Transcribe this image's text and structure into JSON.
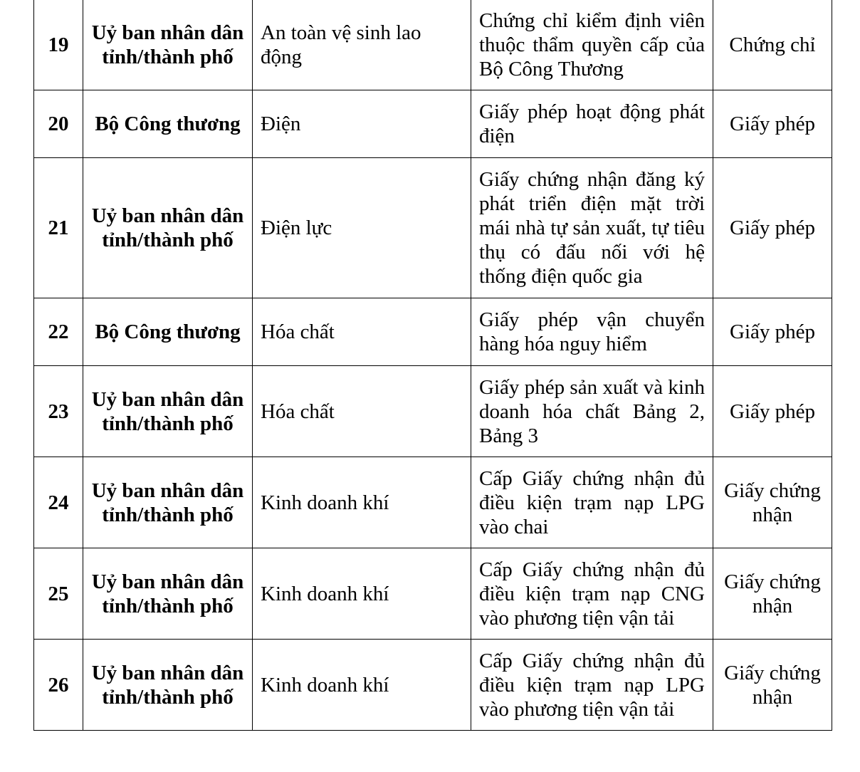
{
  "rows": [
    {
      "no": "19",
      "agency": "Uỷ ban nhân dân tỉnh/thành phố",
      "field": "An toàn vệ sinh lao động",
      "procedure": "Chứng chỉ kiểm định viên thuộc thẩm quyền cấp của Bộ Công Thương",
      "type": "Chứng chỉ"
    },
    {
      "no": "20",
      "agency": "Bộ Công thương",
      "field": "Điện",
      "procedure": "Giấy phép hoạt động phát điện",
      "type": "Giấy phép"
    },
    {
      "no": "21",
      "agency": "Uỷ ban nhân dân tỉnh/thành phố",
      "field": "Điện lực",
      "procedure": "Giấy chứng nhận đăng ký phát triển điện mặt trời mái nhà tự sản xuất, tự tiêu thụ có đấu nối với hệ thống điện quốc gia",
      "type": "Giấy phép"
    },
    {
      "no": "22",
      "agency": "Bộ Công thương",
      "field": "Hóa chất",
      "procedure": "Giấy phép vận chuyển hàng hóa nguy hiểm",
      "type": "Giấy phép"
    },
    {
      "no": "23",
      "agency": "Uỷ ban nhân dân tỉnh/thành phố",
      "field": "Hóa chất",
      "procedure": "Giấy phép sản xuất và kinh doanh hóa chất Bảng 2, Bảng 3",
      "type": "Giấy phép"
    },
    {
      "no": "24",
      "agency": "Uỷ ban nhân dân tỉnh/thành phố",
      "field": "Kinh doanh khí",
      "procedure": "Cấp Giấy chứng nhận đủ điều kiện trạm nạp LPG vào chai",
      "type": "Giấy chứng nhận"
    },
    {
      "no": "25",
      "agency": "Uỷ ban nhân dân tỉnh/thành phố",
      "field": "Kinh doanh khí",
      "procedure": "Cấp Giấy chứng nhận đủ điều kiện trạm nạp CNG vào phương tiện vận tải",
      "type": "Giấy chứng nhận"
    },
    {
      "no": "26",
      "agency": "Uỷ ban nhân dân tỉnh/thành phố",
      "field": "Kinh doanh khí",
      "procedure": "Cấp Giấy chứng nhận đủ điều kiện trạm nạp LPG vào phương tiện vận tải",
      "type": "Giấy chứng nhận"
    }
  ]
}
